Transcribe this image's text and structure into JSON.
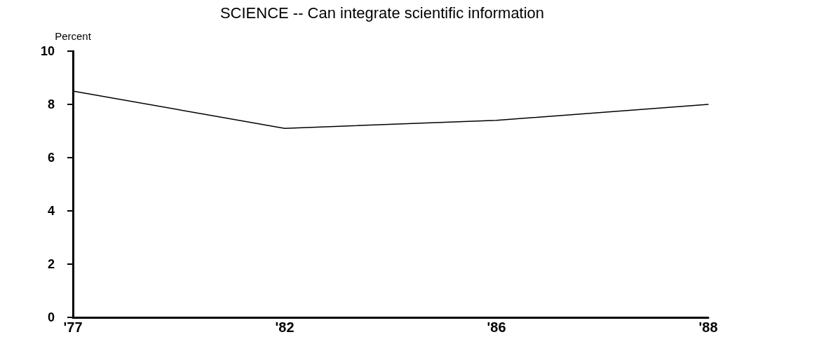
{
  "chart_data": {
    "type": "line",
    "title": "SCIENCE -- Can integrate scientific information",
    "ylabel": "Percent",
    "categories": [
      "'77",
      "'82",
      "'86",
      "'88"
    ],
    "series": [
      {
        "color": "#000000",
        "values": [
          8.5,
          7.1,
          7.4,
          8.0
        ]
      }
    ],
    "ylim": [
      0,
      10
    ],
    "yticks": [
      0,
      2,
      4,
      6,
      8,
      10
    ],
    "marker": "none",
    "line_style": "solid"
  }
}
